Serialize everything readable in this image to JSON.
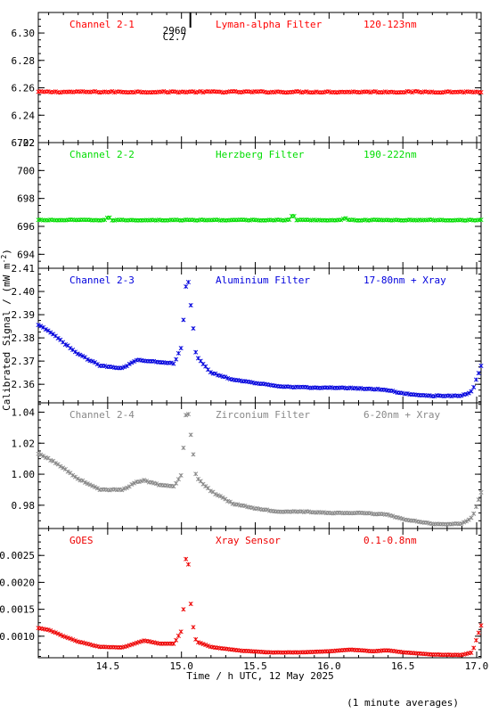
{
  "footer": {
    "xlabel": "Time / h UTC, 12 May 2025",
    "ylabel": "Calibrated Signal / (mW m",
    "ylabel_sup": "-2",
    "ylabel_close": ")",
    "note": "(1 minute averages)"
  },
  "flare_marker": {
    "label_number": "2960",
    "label_class": "C2.7",
    "time_h": 15.03
  },
  "chart_data": [
    {
      "type": "scatter",
      "title": "Channel 2-1",
      "filter": "Lyman-alpha Filter",
      "band": "120-123nm",
      "color": "#ff0000",
      "xlim": [
        14.03,
        17.03
      ],
      "ylim": [
        6.22,
        6.315
      ],
      "yticks": [
        6.22,
        6.24,
        6.26,
        6.28,
        6.3
      ],
      "ytick_labels": [
        "6.22",
        "6.24",
        "6.26",
        "6.28",
        "6.30"
      ],
      "shape": "flat",
      "level": 6.257,
      "noise": 0.0005,
      "bumps": []
    },
    {
      "type": "scatter",
      "title": "Channel 2-2",
      "filter": "Herzberg Filter",
      "band": "190-222nm",
      "color": "#00dd00",
      "xlim": [
        14.03,
        17.03
      ],
      "ylim": [
        693.0,
        702.0
      ],
      "yticks": [
        694,
        696,
        698,
        700,
        702
      ],
      "ytick_labels": [
        "694",
        "696",
        "698",
        "700",
        "702"
      ],
      "shape": "flat",
      "level": 696.45,
      "noise": 0.03,
      "bumps": [
        [
          14.5,
          0.15
        ],
        [
          15.75,
          0.3
        ],
        [
          16.1,
          0.12
        ]
      ]
    },
    {
      "type": "scatter",
      "title": "Channel 2-3",
      "filter": "Aluminium Filter",
      "band": "17-80nm + Xray",
      "color": "#0000dd",
      "xlim": [
        14.03,
        17.03
      ],
      "ylim": [
        2.352,
        2.41
      ],
      "yticks": [
        2.36,
        2.37,
        2.38,
        2.39,
        2.4,
        2.41
      ],
      "ytick_labels": [
        "2.36",
        "2.37",
        "2.38",
        "2.39",
        "2.40",
        "2.41"
      ],
      "shape": "profile",
      "noise": 0.0002,
      "profile": [
        [
          14.03,
          2.3855
        ],
        [
          14.1,
          2.383
        ],
        [
          14.2,
          2.378
        ],
        [
          14.3,
          2.373
        ],
        [
          14.45,
          2.368
        ],
        [
          14.6,
          2.367
        ],
        [
          14.7,
          2.3705
        ],
        [
          14.8,
          2.37
        ],
        [
          14.95,
          2.369
        ],
        [
          15.0,
          2.376
        ],
        [
          15.03,
          2.402
        ],
        [
          15.045,
          2.405
        ],
        [
          15.07,
          2.39
        ],
        [
          15.1,
          2.372
        ],
        [
          15.2,
          2.365
        ],
        [
          15.35,
          2.362
        ],
        [
          15.5,
          2.3605
        ],
        [
          15.7,
          2.359
        ],
        [
          15.9,
          2.3585
        ],
        [
          16.1,
          2.3585
        ],
        [
          16.3,
          2.358
        ],
        [
          16.4,
          2.3575
        ],
        [
          16.5,
          2.356
        ],
        [
          16.7,
          2.355
        ],
        [
          16.9,
          2.355
        ],
        [
          16.97,
          2.357
        ],
        [
          17.03,
          2.368
        ]
      ]
    },
    {
      "type": "scatter",
      "title": "Channel 2-4",
      "filter": "Zirconium Filter",
      "band": "6-20nm + Xray",
      "color": "#888888",
      "xlim": [
        14.03,
        17.03
      ],
      "ylim": [
        0.965,
        1.046
      ],
      "yticks": [
        0.98,
        1.0,
        1.02,
        1.04
      ],
      "ytick_labels": [
        "0.98",
        "1.00",
        "1.02",
        "1.04"
      ],
      "shape": "profile",
      "noise": 0.0003,
      "profile": [
        [
          14.03,
          1.013
        ],
        [
          14.1,
          1.01
        ],
        [
          14.2,
          1.004
        ],
        [
          14.3,
          0.997
        ],
        [
          14.45,
          0.99
        ],
        [
          14.6,
          0.99
        ],
        [
          14.7,
          0.995
        ],
        [
          14.75,
          0.996
        ],
        [
          14.85,
          0.993
        ],
        [
          14.95,
          0.992
        ],
        [
          15.0,
          1.0
        ],
        [
          15.03,
          1.038
        ],
        [
          15.045,
          1.04
        ],
        [
          15.07,
          1.02
        ],
        [
          15.1,
          0.998
        ],
        [
          15.2,
          0.989
        ],
        [
          15.35,
          0.981
        ],
        [
          15.5,
          0.978
        ],
        [
          15.65,
          0.976
        ],
        [
          15.8,
          0.976
        ],
        [
          16.0,
          0.975
        ],
        [
          16.2,
          0.975
        ],
        [
          16.4,
          0.974
        ],
        [
          16.5,
          0.971
        ],
        [
          16.7,
          0.968
        ],
        [
          16.9,
          0.968
        ],
        [
          16.97,
          0.972
        ],
        [
          17.03,
          0.988
        ]
      ]
    },
    {
      "type": "scatter",
      "title": "GOES",
      "filter": "Xray Sensor",
      "band": "0.1-0.8nm",
      "color": "#ee0000",
      "xlim": [
        14.03,
        17.03
      ],
      "ylim": [
        0.0006,
        0.003
      ],
      "yticks": [
        0.001,
        0.0015,
        0.002,
        0.0025
      ],
      "ytick_labels": [
        "0.0010",
        "0.0015",
        "0.0020",
        "0.0025"
      ],
      "shape": "profile",
      "noise": 3e-06,
      "profile": [
        [
          14.03,
          0.00115
        ],
        [
          14.1,
          0.00112
        ],
        [
          14.2,
          0.001
        ],
        [
          14.3,
          0.0009
        ],
        [
          14.45,
          0.0008
        ],
        [
          14.6,
          0.00079
        ],
        [
          14.7,
          0.00088
        ],
        [
          14.75,
          0.00092
        ],
        [
          14.85,
          0.00086
        ],
        [
          14.95,
          0.00086
        ],
        [
          15.0,
          0.0011
        ],
        [
          15.02,
          0.0017
        ],
        [
          15.035,
          0.0028
        ],
        [
          15.05,
          0.0022
        ],
        [
          15.07,
          0.0013
        ],
        [
          15.1,
          0.0009
        ],
        [
          15.2,
          0.0008
        ],
        [
          15.4,
          0.00073
        ],
        [
          15.6,
          0.0007
        ],
        [
          15.8,
          0.0007
        ],
        [
          16.0,
          0.00072
        ],
        [
          16.15,
          0.00075
        ],
        [
          16.3,
          0.00072
        ],
        [
          16.4,
          0.00074
        ],
        [
          16.5,
          0.0007
        ],
        [
          16.7,
          0.00066
        ],
        [
          16.9,
          0.00065
        ],
        [
          16.97,
          0.0007
        ],
        [
          17.03,
          0.0012
        ]
      ]
    }
  ],
  "xaxis": {
    "ticks": [
      14.5,
      15.0,
      15.5,
      16.0,
      16.5,
      17.0
    ],
    "tick_labels": [
      "14.5",
      "15.0",
      "15.5",
      "16.0",
      "16.5",
      "17.0"
    ]
  }
}
